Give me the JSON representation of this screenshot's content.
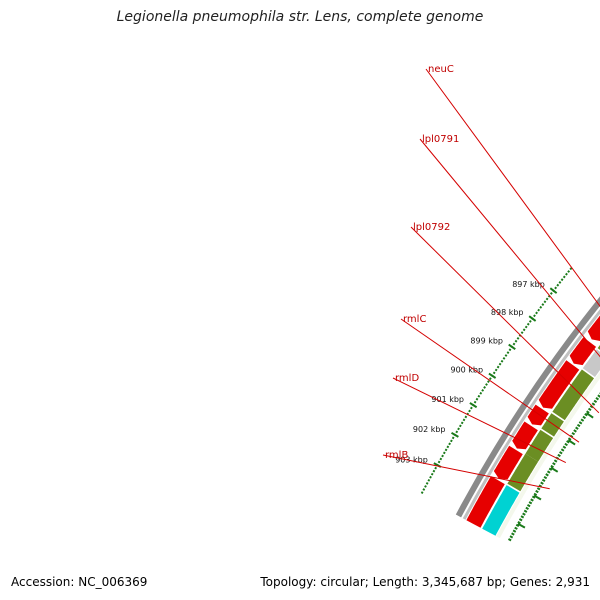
{
  "title": "Legionella pneumophila str. Lens, complete genome",
  "footer": {
    "accession": "Accession: NC_006369",
    "summary": "Topology: circular; Length: 3,345,687 bp; Genes: 2,931"
  },
  "colors": {
    "backbone": "#8a8a8a",
    "ticks": "#1a7a1a",
    "forward_strand": "#e60000",
    "reverse_strand": "#6b8e23",
    "pseudo": "#c8c8c8",
    "cyan_feature": "#00d2d2",
    "label_line": "#d40000"
  },
  "ticks": [
    {
      "kbp": 897,
      "label": "897 kbp"
    },
    {
      "kbp": 898,
      "label": "898 kbp"
    },
    {
      "kbp": 899,
      "label": "899 kbp"
    },
    {
      "kbp": 900,
      "label": "900 kbp"
    },
    {
      "kbp": 901,
      "label": "901 kbp"
    },
    {
      "kbp": 902,
      "label": "902 kbp"
    },
    {
      "kbp": 903,
      "label": "903 kbp"
    }
  ],
  "genes": [
    {
      "name": "neuC",
      "start_kbp": 896.55,
      "end_kbp": 897.55
    },
    {
      "name": "lpl0791",
      "start_kbp": 897.6,
      "end_kbp": 898.3
    },
    {
      "name": "lpl0792",
      "start_kbp": 898.35,
      "end_kbp": 899.9
    },
    {
      "name": "rmlC",
      "start_kbp": 899.95,
      "end_kbp": 900.5
    },
    {
      "name": "rmlD",
      "start_kbp": 900.55,
      "end_kbp": 901.4
    },
    {
      "name": "rmlB",
      "start_kbp": 901.4,
      "end_kbp": 902.45
    },
    {
      "name": "",
      "start_kbp": 902.5,
      "end_kbp": 903.6
    }
  ]
}
